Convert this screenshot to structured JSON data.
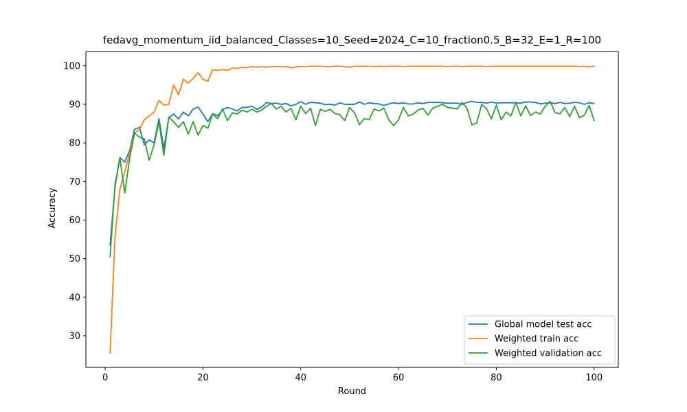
{
  "chart_data": {
    "type": "line",
    "title": "fedavg_momentum_iid_balanced_Classes=10_Seed=2024_C=10_fraction0.5_B=32_E=1_R=100",
    "xlabel": "Round",
    "ylabel": "Accuracy",
    "xlim": [
      -3.95,
      104.95
    ],
    "ylim": [
      21.8,
      103.7
    ],
    "xticks": [
      0,
      20,
      40,
      60,
      80,
      100
    ],
    "yticks": [
      30,
      40,
      50,
      60,
      70,
      80,
      90,
      100
    ],
    "grid": false,
    "legend_position": "lower-right",
    "x": [
      1,
      2,
      3,
      4,
      5,
      6,
      7,
      8,
      9,
      10,
      11,
      12,
      13,
      14,
      15,
      16,
      17,
      18,
      19,
      20,
      21,
      22,
      23,
      24,
      25,
      26,
      27,
      28,
      29,
      30,
      31,
      32,
      33,
      34,
      35,
      36,
      37,
      38,
      39,
      40,
      41,
      42,
      43,
      44,
      45,
      46,
      47,
      48,
      49,
      50,
      51,
      52,
      53,
      54,
      55,
      56,
      57,
      58,
      59,
      60,
      61,
      62,
      63,
      64,
      65,
      66,
      67,
      68,
      69,
      70,
      71,
      72,
      73,
      74,
      75,
      76,
      77,
      78,
      79,
      80,
      81,
      82,
      83,
      84,
      85,
      86,
      87,
      88,
      89,
      90,
      91,
      92,
      93,
      94,
      95,
      96,
      97,
      98,
      99,
      100
    ],
    "series": [
      {
        "name": "Global model test acc",
        "color": "#1f77b4",
        "values": [
          53.5,
          68.5,
          76.2,
          75.0,
          78.0,
          83.5,
          84.0,
          79.5,
          80.8,
          80.0,
          86.3,
          78.5,
          86.5,
          87.5,
          86.2,
          88.0,
          87.0,
          88.8,
          89.3,
          87.5,
          85.5,
          87.6,
          87.0,
          88.6,
          89.2,
          88.8,
          88.3,
          89.2,
          89.2,
          89.5,
          88.7,
          89.3,
          90.5,
          90.2,
          90.3,
          90.0,
          90.2,
          89.6,
          90.0,
          90.7,
          90.0,
          90.5,
          90.4,
          90.3,
          89.9,
          90.0,
          89.8,
          90.4,
          90.0,
          90.0,
          90.0,
          90.6,
          90.0,
          90.4,
          90.2,
          90.1,
          89.7,
          90.1,
          90.4,
          90.2,
          90.4,
          90.1,
          90.1,
          90.4,
          90.2,
          90.5,
          90.5,
          90.5,
          90.4,
          90.3,
          90.3,
          90.3,
          90.0,
          90.5,
          90.8,
          90.5,
          90.5,
          90.3,
          90.6,
          90.3,
          90.4,
          90.4,
          90.4,
          90.4,
          90.3,
          90.6,
          90.6,
          90.5,
          90.1,
          90.3,
          90.4,
          90.2,
          90.5,
          90.2,
          90.3,
          90.5,
          90.4,
          90.0,
          90.4,
          90.2
        ]
      },
      {
        "name": "Weighted train acc",
        "color": "#ff7f0e",
        "values": [
          25.5,
          55.5,
          68.0,
          72.5,
          77.5,
          82.5,
          83.5,
          86.0,
          87.0,
          88.0,
          91.0,
          89.8,
          90.0,
          95.0,
          92.5,
          96.5,
          95.5,
          96.8,
          98.2,
          96.5,
          96.0,
          99.0,
          98.8,
          99.0,
          98.8,
          99.4,
          99.3,
          99.6,
          99.5,
          99.8,
          99.6,
          99.8,
          99.6,
          99.8,
          99.8,
          99.7,
          99.8,
          99.5,
          99.7,
          99.8,
          99.8,
          99.9,
          99.9,
          99.9,
          99.8,
          99.8,
          99.9,
          99.9,
          99.8,
          99.6,
          99.9,
          99.9,
          99.9,
          99.9,
          99.8,
          99.9,
          99.8,
          99.9,
          99.9,
          99.9,
          99.8,
          99.9,
          99.9,
          99.9,
          99.9,
          99.9,
          99.9,
          99.9,
          99.9,
          99.8,
          99.9,
          99.9,
          99.8,
          99.9,
          99.9,
          99.9,
          99.9,
          99.8,
          99.9,
          99.9,
          99.9,
          99.9,
          99.9,
          99.9,
          99.9,
          99.9,
          99.9,
          99.9,
          99.9,
          99.9,
          99.9,
          99.9,
          99.9,
          99.9,
          99.9,
          99.9,
          99.8,
          99.9,
          99.7,
          99.9
        ]
      },
      {
        "name": "Weighted validation acc",
        "color": "#2ca02c",
        "values": [
          50.5,
          69.0,
          76.2,
          67.0,
          76.0,
          82.5,
          81.5,
          81.0,
          75.5,
          79.5,
          85.5,
          76.8,
          86.7,
          85.5,
          84.0,
          85.5,
          82.3,
          85.5,
          82.0,
          84.5,
          83.8,
          87.5,
          86.3,
          88.8,
          85.8,
          87.8,
          87.5,
          88.5,
          88.0,
          88.7,
          88.0,
          88.5,
          89.5,
          90.2,
          88.8,
          89.5,
          88.0,
          89.0,
          86.0,
          89.5,
          87.6,
          89.0,
          84.5,
          88.7,
          88.2,
          88.7,
          87.6,
          87.3,
          85.8,
          89.2,
          87.8,
          84.7,
          86.3,
          86.0,
          88.8,
          88.3,
          89.0,
          86.0,
          84.5,
          86.0,
          89.2,
          87.0,
          87.5,
          88.5,
          89.0,
          87.2,
          89.0,
          89.5,
          90.0,
          89.2,
          89.0,
          88.8,
          90.5,
          89.0,
          84.7,
          85.2,
          90.0,
          88.9,
          86.2,
          89.8,
          86.0,
          88.0,
          87.0,
          90.5,
          87.0,
          89.6,
          87.1,
          88.0,
          87.5,
          89.5,
          90.8,
          87.9,
          87.5,
          89.2,
          86.8,
          89.5,
          86.5,
          87.2,
          89.7,
          85.8
        ]
      }
    ]
  }
}
